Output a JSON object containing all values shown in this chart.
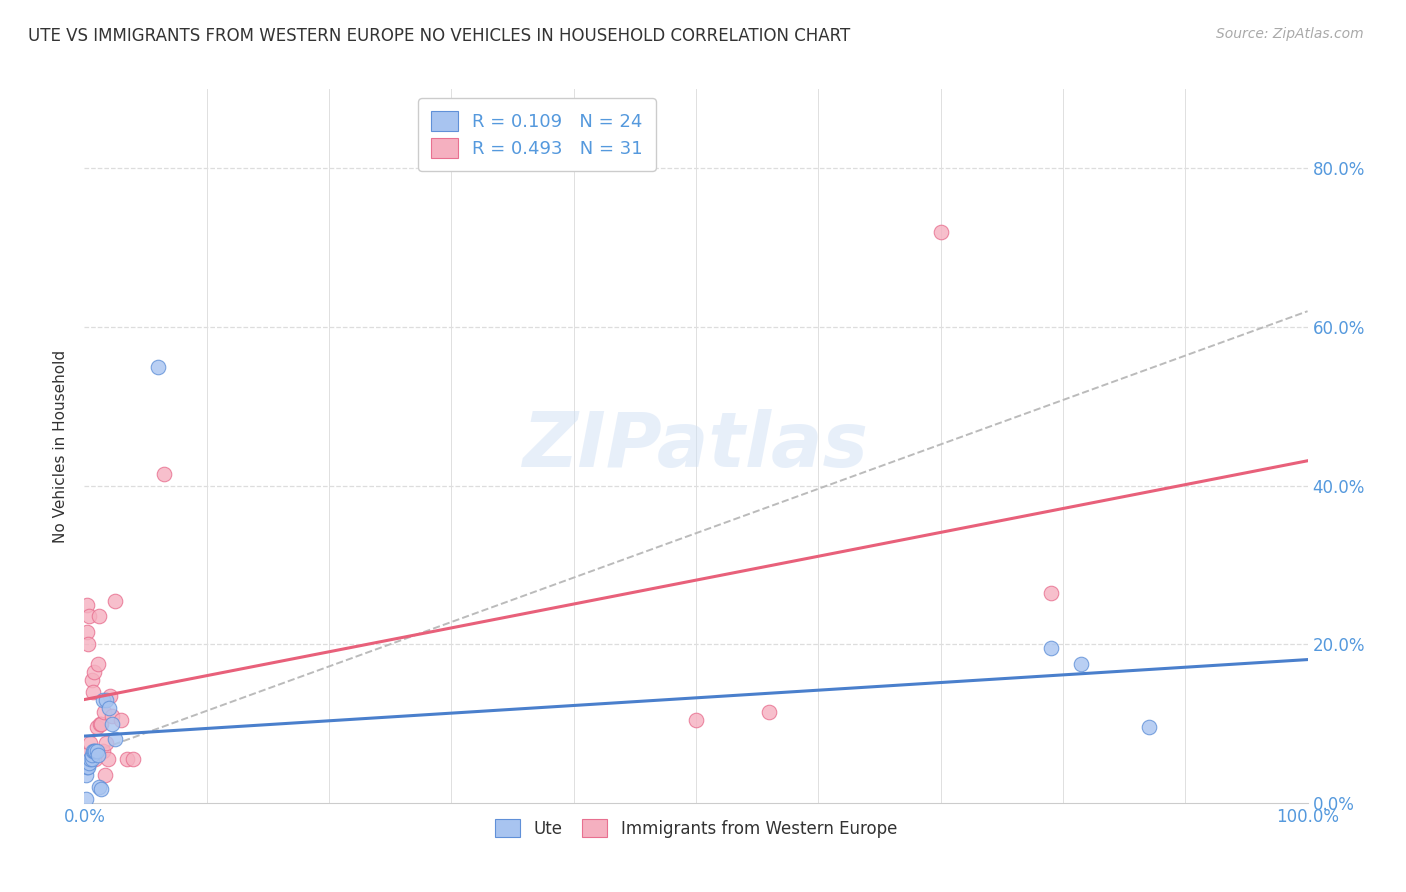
{
  "title": "UTE VS IMMIGRANTS FROM WESTERN EUROPE NO VEHICLES IN HOUSEHOLD CORRELATION CHART",
  "source": "Source: ZipAtlas.com",
  "ylabel": "No Vehicles in Household",
  "legend_labels": [
    "Ute",
    "Immigrants from Western Europe"
  ],
  "ute_R": 0.109,
  "ute_N": 24,
  "imm_R": 0.493,
  "imm_N": 31,
  "ute_color": "#a8c4f0",
  "imm_color": "#f5b0c0",
  "ute_edge_color": "#6090d8",
  "imm_edge_color": "#e87090",
  "ute_line_color": "#4a7fcc",
  "imm_line_color": "#e8607a",
  "trend_line_color": "#bbbbbb",
  "background_color": "#ffffff",
  "grid_color": "#dddddd",
  "title_color": "#333333",
  "axis_tick_color": "#5599dd",
  "source_color": "#aaaaaa",
  "watermark_color": "#d0e0f5",
  "watermark_text": "ZIPatlas",
  "ute_x": [
    0.001,
    0.001,
    0.002,
    0.003,
    0.004,
    0.005,
    0.006,
    0.006,
    0.007,
    0.008,
    0.009,
    0.01,
    0.011,
    0.012,
    0.014,
    0.015,
    0.018,
    0.02,
    0.023,
    0.025,
    0.06,
    0.79,
    0.815,
    0.87
  ],
  "ute_y": [
    0.035,
    0.005,
    0.045,
    0.045,
    0.05,
    0.055,
    0.055,
    0.06,
    0.065,
    0.065,
    0.065,
    0.065,
    0.06,
    0.02,
    0.018,
    0.13,
    0.13,
    0.12,
    0.1,
    0.08,
    0.55,
    0.195,
    0.175,
    0.095
  ],
  "imm_x": [
    0.001,
    0.002,
    0.002,
    0.003,
    0.004,
    0.005,
    0.006,
    0.007,
    0.008,
    0.009,
    0.01,
    0.011,
    0.012,
    0.013,
    0.014,
    0.015,
    0.016,
    0.017,
    0.018,
    0.019,
    0.021,
    0.023,
    0.025,
    0.03,
    0.035,
    0.04,
    0.065,
    0.5,
    0.56,
    0.7,
    0.79
  ],
  "imm_y": [
    0.06,
    0.215,
    0.25,
    0.2,
    0.235,
    0.075,
    0.155,
    0.14,
    0.165,
    0.055,
    0.095,
    0.175,
    0.235,
    0.1,
    0.1,
    0.065,
    0.115,
    0.035,
    0.075,
    0.055,
    0.135,
    0.11,
    0.255,
    0.105,
    0.055,
    0.055,
    0.415,
    0.105,
    0.115,
    0.72,
    0.265
  ],
  "xlim": [
    0.0,
    1.0
  ],
  "ylim": [
    0.0,
    0.9
  ],
  "yticks": [
    0.0,
    0.2,
    0.4,
    0.6,
    0.8
  ],
  "xtick_positions": [
    0.0,
    0.1,
    0.2,
    0.3,
    0.4,
    0.5,
    0.6,
    0.7,
    0.8,
    0.9,
    1.0
  ],
  "marker_size": 110,
  "figsize": [
    14.06,
    8.92
  ],
  "dpi": 100
}
